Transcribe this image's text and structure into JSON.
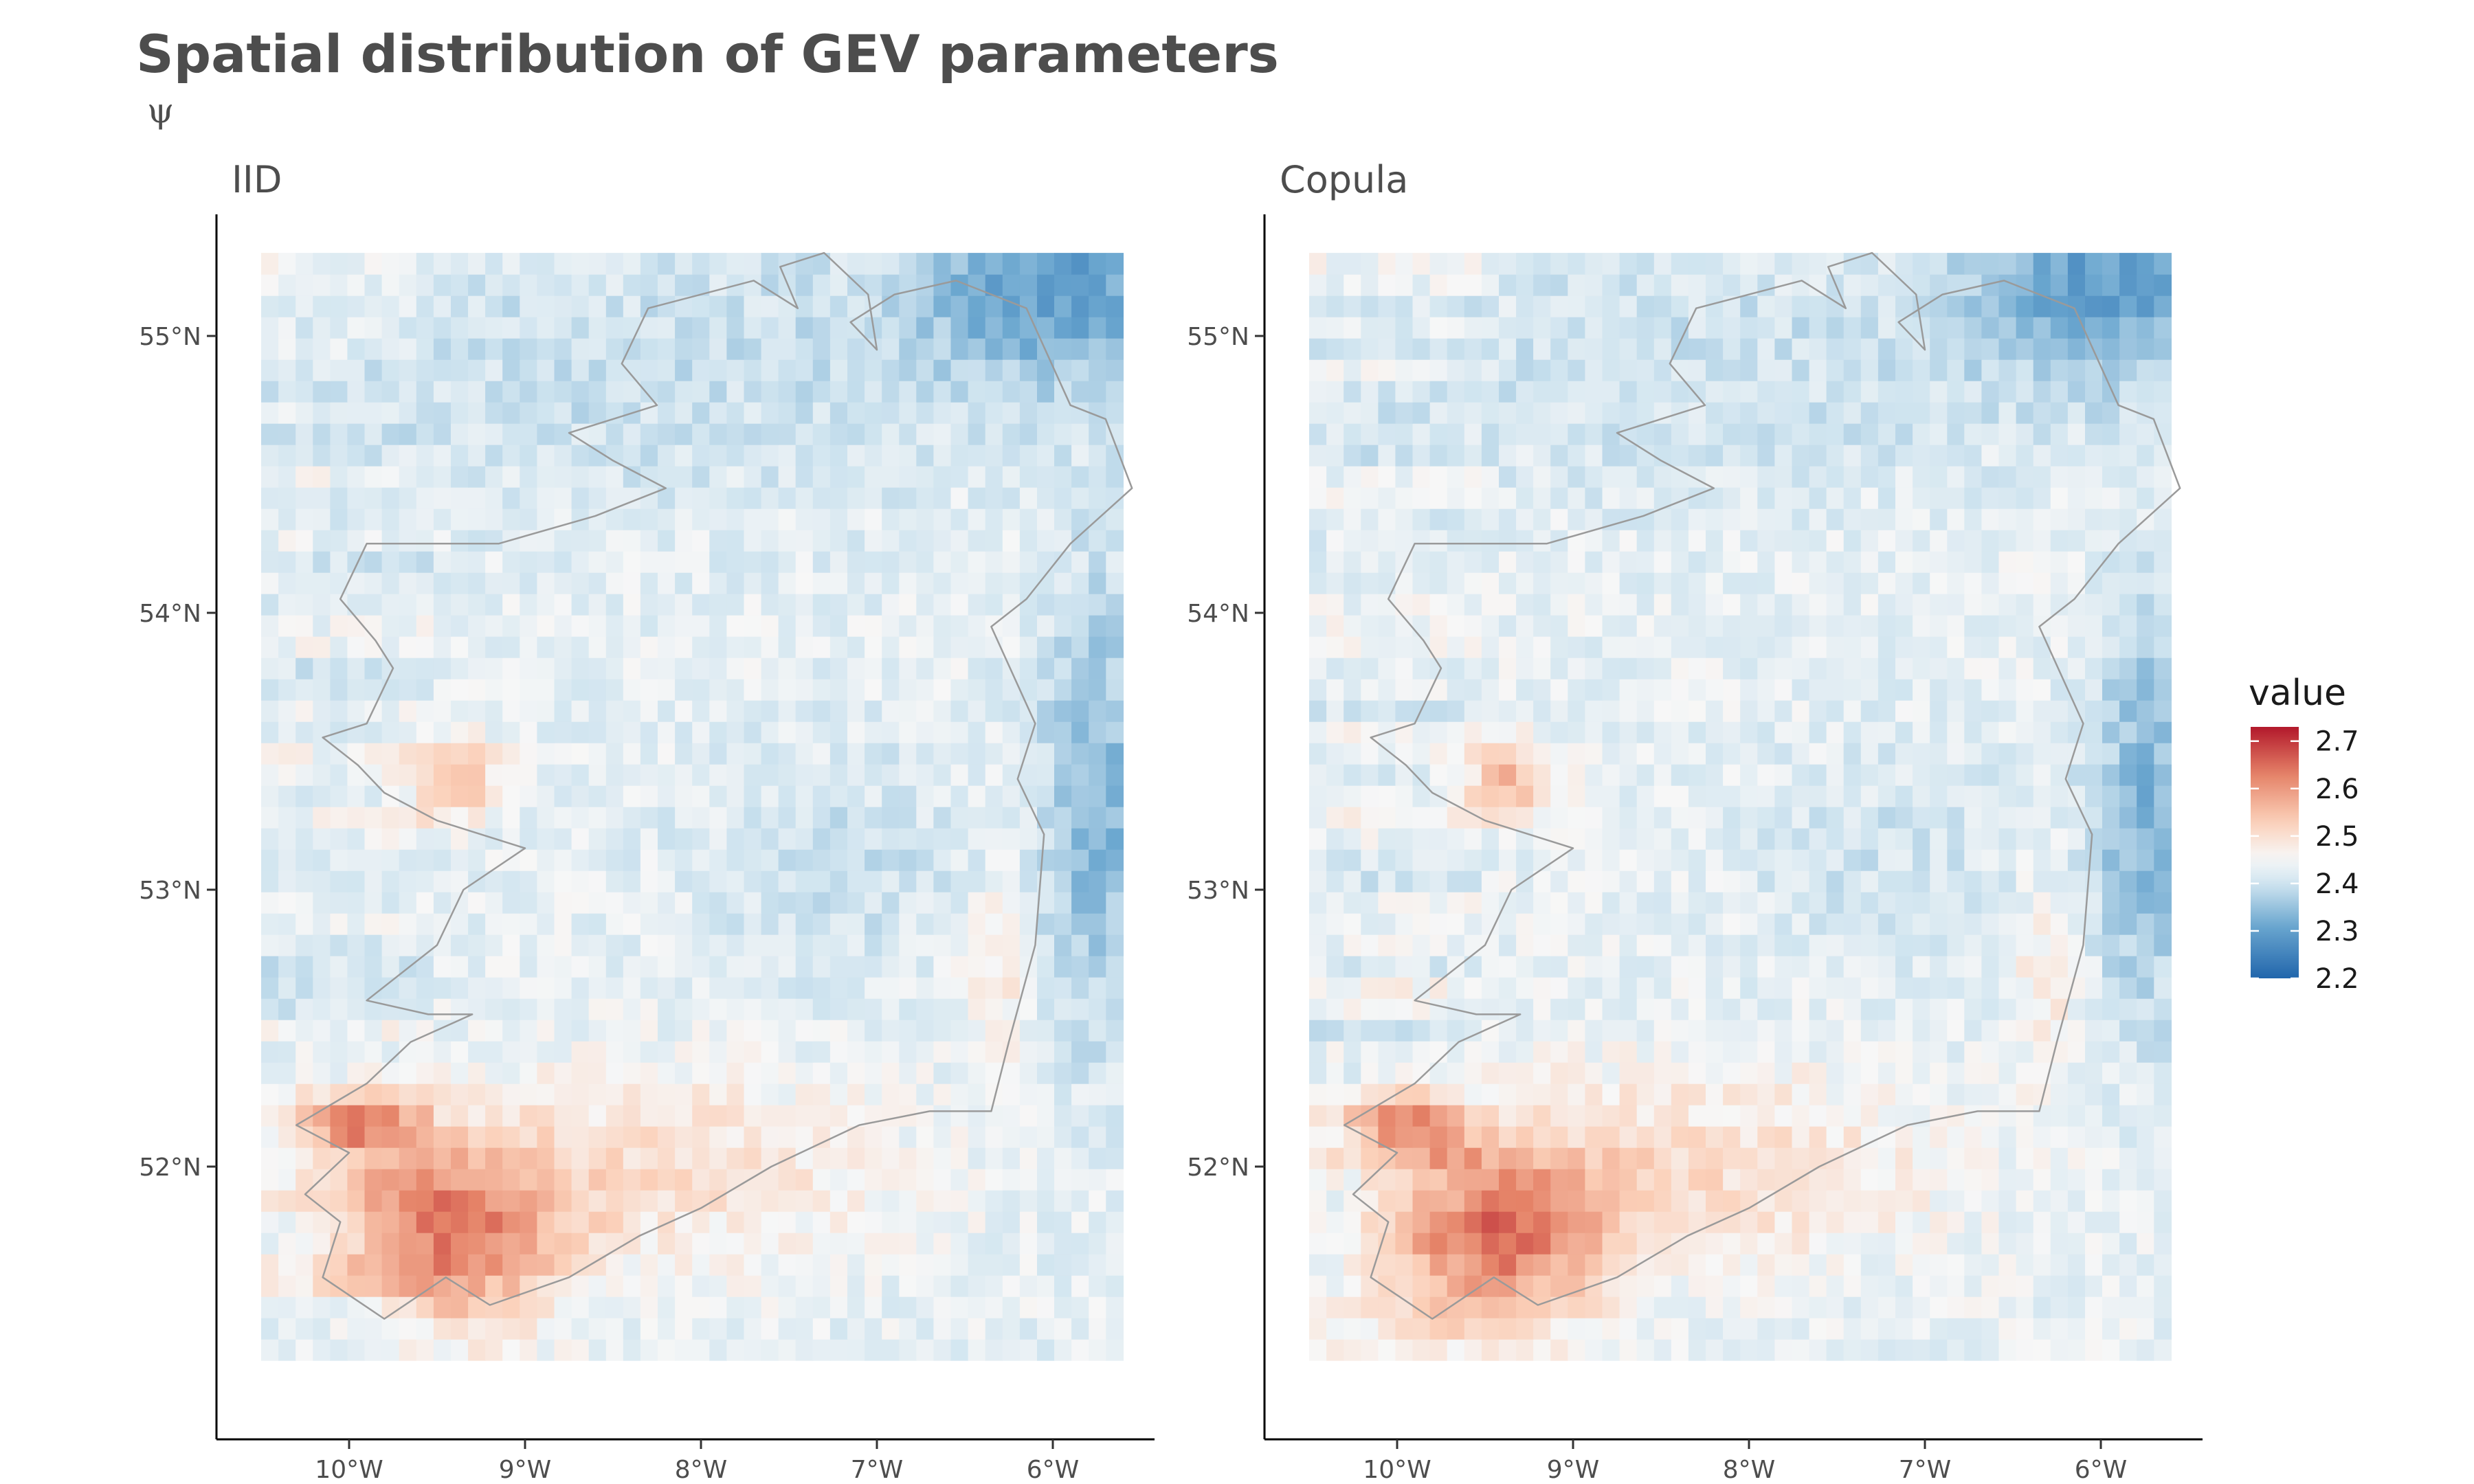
{
  "chart_data": {
    "type": "heatmap",
    "title": "Spatial distribution of GEV parameters",
    "subtitle": "ψ",
    "panels": [
      "IID",
      "Copula"
    ],
    "x_ticks": [
      {
        "value": -10,
        "label": "10°W"
      },
      {
        "value": -9,
        "label": "9°W"
      },
      {
        "value": -8,
        "label": "8°W"
      },
      {
        "value": -7,
        "label": "7°W"
      },
      {
        "value": -6,
        "label": "6°W"
      }
    ],
    "y_ticks": [
      {
        "value": 55,
        "label": "55°N"
      },
      {
        "value": 54,
        "label": "54°N"
      },
      {
        "value": 53,
        "label": "53°N"
      },
      {
        "value": 52,
        "label": "52°N"
      }
    ],
    "xlim": [
      -10.5,
      -5.6
    ],
    "ylim": [
      51.3,
      55.3
    ],
    "legend": {
      "title": "value",
      "placement": "right",
      "range": [
        2.2,
        2.73
      ],
      "breaks": [
        2.7,
        2.6,
        2.5,
        2.4,
        2.3,
        2.2
      ],
      "colors": [
        "#2166ac",
        "#6aa6cf",
        "#d1e5f0",
        "#f7f7f7",
        "#fbd0b9",
        "#e58267",
        "#b2182b"
      ]
    },
    "grid": false,
    "coastline_color": "#9a9a9a"
  }
}
